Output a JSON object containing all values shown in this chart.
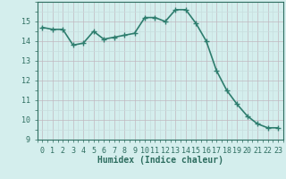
{
  "x": [
    0,
    1,
    2,
    3,
    4,
    5,
    6,
    7,
    8,
    9,
    10,
    11,
    12,
    13,
    14,
    15,
    16,
    17,
    18,
    19,
    20,
    21,
    22,
    23
  ],
  "y": [
    14.7,
    14.6,
    14.6,
    13.8,
    13.9,
    14.5,
    14.1,
    14.2,
    14.3,
    14.4,
    15.2,
    15.2,
    15.0,
    15.6,
    15.6,
    14.9,
    14.0,
    12.5,
    11.5,
    10.8,
    10.2,
    9.8,
    9.6,
    9.6
  ],
  "line_color": "#2e7d6e",
  "marker": "+",
  "marker_size": 4,
  "bg_color": "#d4eeed",
  "grid_major_color": "#c0b8c0",
  "grid_minor_color": "#c8dede",
  "xlabel": "Humidex (Indice chaleur)",
  "xlim": [
    -0.5,
    23.5
  ],
  "ylim": [
    9,
    16
  ],
  "yticks": [
    9,
    10,
    11,
    12,
    13,
    14,
    15
  ],
  "xticks": [
    0,
    1,
    2,
    3,
    4,
    5,
    6,
    7,
    8,
    9,
    10,
    11,
    12,
    13,
    14,
    15,
    16,
    17,
    18,
    19,
    20,
    21,
    22,
    23
  ],
  "font_color": "#2e6e60",
  "line_width": 1.2,
  "tick_fontsize": 6.0,
  "xlabel_fontsize": 7.0
}
